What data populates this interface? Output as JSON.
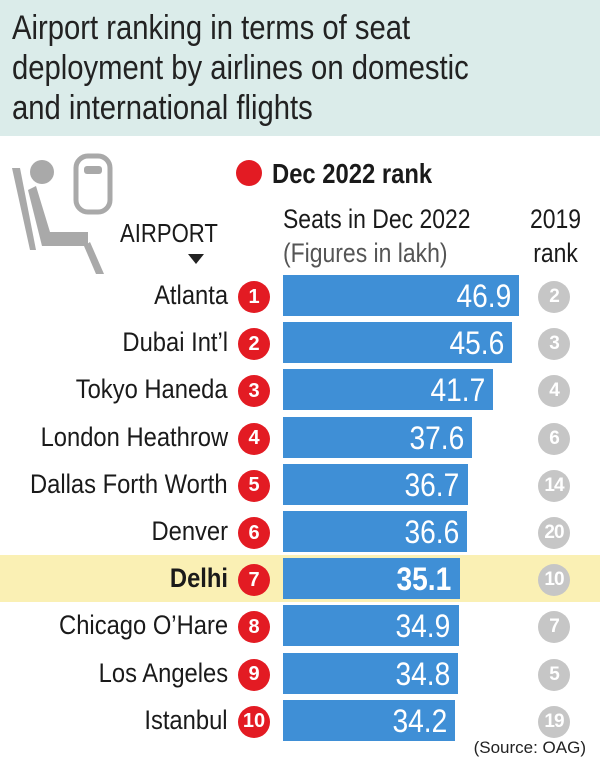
{
  "title_lines": [
    "Airport ranking in terms of seat",
    "deployment by airlines on domestic",
    "and international flights"
  ],
  "legend": {
    "label": "Dec 2022 rank",
    "color": "#e31b23"
  },
  "headers": {
    "airport": "AIRPORT",
    "seats_line1": "Seats in Dec 2022",
    "seats_line2": "(Figures in lakh)",
    "rank2019_line1": "2019",
    "rank2019_line2": "rank"
  },
  "source": "(Source: OAG)",
  "colors": {
    "bar": "#3f8fd6",
    "rank_dot": "#e31b23",
    "rank2019_dot": "#c6c6c6",
    "highlight": "#faf0b4",
    "title_band": "#dbecea"
  },
  "chart_data": {
    "type": "bar",
    "orientation": "horizontal",
    "categories": [
      "Atlanta",
      "Dubai Int’l",
      "Tokyo Haneda",
      "London Heathrow",
      "Dallas Forth Worth",
      "Denver",
      "Delhi",
      "Chicago O’Hare",
      "Los Angeles",
      "Istanbul"
    ],
    "values": [
      46.9,
      45.6,
      41.7,
      37.6,
      36.7,
      36.6,
      35.1,
      34.9,
      34.8,
      34.2
    ],
    "value_labels": [
      "46.9",
      "45.6",
      "41.7",
      "37.6",
      "36.7",
      "36.6",
      "35.1",
      "34.9",
      "34.8",
      "34.2"
    ],
    "dec2022_rank": [
      "1",
      "2",
      "3",
      "4",
      "5",
      "6",
      "7",
      "8",
      "9",
      "10"
    ],
    "rank_2019": [
      "2",
      "3",
      "4",
      "6",
      "14",
      "20",
      "10",
      "7",
      "5",
      "19"
    ],
    "highlighted": "Delhi",
    "xlim": [
      0,
      50
    ],
    "grid": false
  }
}
